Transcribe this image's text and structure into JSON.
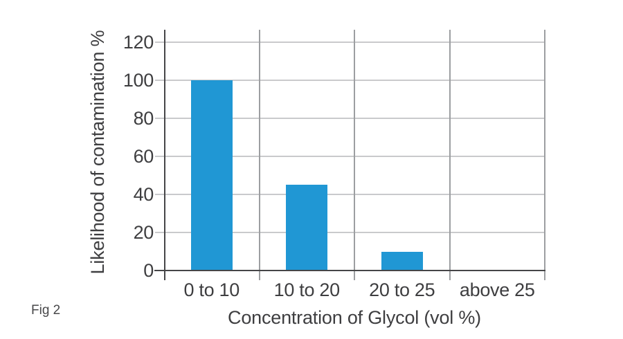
{
  "figure": {
    "caption": "Fig 2"
  },
  "chart_data": {
    "type": "bar",
    "title": "",
    "categories": [
      "0 to 10",
      "10 to 20",
      "20 to 25",
      "above 25"
    ],
    "values": [
      100,
      45,
      10,
      0
    ],
    "xlabel": "Concentration of Glycol (vol %)",
    "ylabel": "Likelihood of contamination %",
    "yticks": [
      0,
      20,
      40,
      60,
      80,
      100,
      120
    ],
    "ylim": [
      0,
      126.5
    ],
    "grid": true,
    "legend_position": "none",
    "colors": {
      "bar": "#2097d4",
      "h_gridline": "#c9cacc",
      "v_gridline": "#9c9ea1",
      "axis": "#454547",
      "text": "#3e3e40"
    }
  }
}
